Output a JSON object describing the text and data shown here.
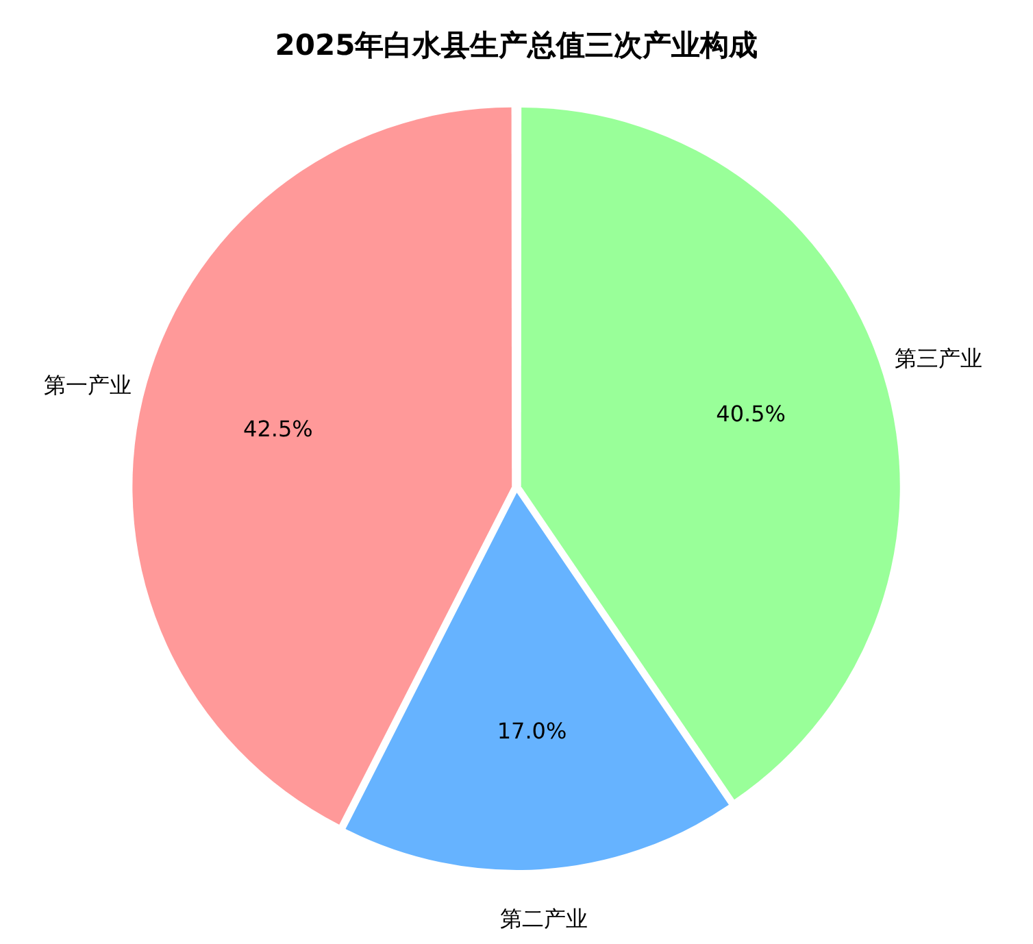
{
  "chart_data": {
    "type": "pie",
    "title": "2025年白水县生产总值三次产业构成",
    "categories": [
      "第三产业",
      "第二产业",
      "第一产业"
    ],
    "values": [
      40.5,
      17.0,
      42.5
    ],
    "value_labels": [
      "40.5%",
      "17.0%",
      "42.5%"
    ],
    "colors": [
      "#99ff99",
      "#66b3ff",
      "#ff9999"
    ],
    "legend": false
  }
}
